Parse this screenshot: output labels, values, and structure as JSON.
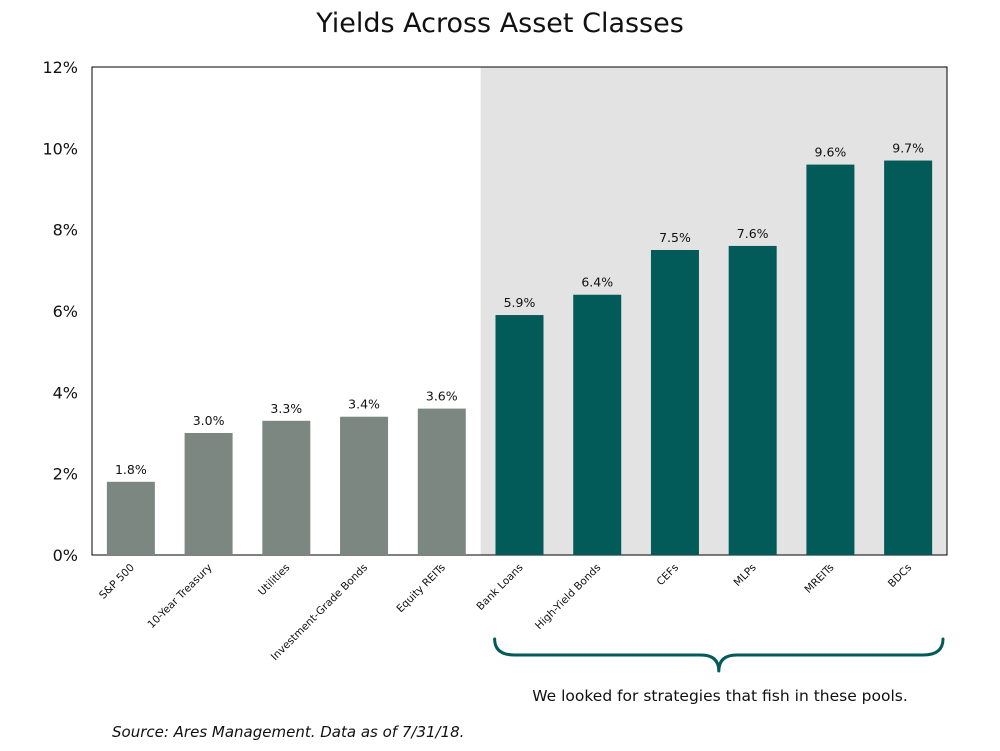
{
  "chart_data": {
    "type": "bar",
    "title": "Yields Across Asset Classes",
    "categories": [
      "S&P 500",
      "10-Year Treasury",
      "Utilities",
      "Investment-Grade Bonds",
      "Equity REITs",
      "Bank Loans",
      "High-Yield Bonds",
      "CEFs",
      "MLPs",
      "MREITs",
      "BDCs"
    ],
    "values": [
      1.8,
      3.0,
      3.3,
      3.4,
      3.6,
      5.9,
      6.4,
      7.5,
      7.6,
      9.6,
      9.7
    ],
    "value_labels": [
      "1.8%",
      "3.0%",
      "3.3%",
      "3.4%",
      "3.6%",
      "5.9%",
      "6.4%",
      "7.5%",
      "7.6%",
      "9.6%",
      "9.7%"
    ],
    "yticks": [
      "0%",
      "2%",
      "4%",
      "6%",
      "8%",
      "10%",
      "12%"
    ],
    "ylim": [
      0,
      12
    ],
    "xlabel": "",
    "ylabel": "",
    "grid": false,
    "highlight_start_index": 5,
    "colors": {
      "base_bar": "#7d8782",
      "highlight_bar": "#025a59",
      "highlight_background": "#e3e3e3",
      "brace": "#025a59"
    }
  },
  "annotation": "We looked for strategies that fish in these pools.",
  "source": "Source: Ares Management. Data as of 7/31/18."
}
